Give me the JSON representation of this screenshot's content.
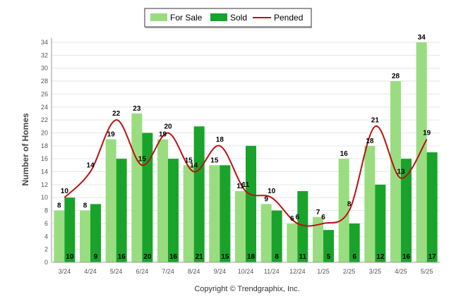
{
  "chart_data": {
    "type": "bar",
    "categories": [
      "3/24",
      "4/24",
      "5/24",
      "6/24",
      "7/24",
      "8/24",
      "9/24",
      "10/24",
      "11/24",
      "12/24",
      "1/25",
      "2/25",
      "3/25",
      "4/25",
      "5/25"
    ],
    "series": [
      {
        "name": "For Sale",
        "type": "bar",
        "color": "#99dd80",
        "values": [
          8,
          8,
          19,
          23,
          19,
          15,
          15,
          11,
          9,
          6,
          7,
          16,
          18,
          28,
          34
        ]
      },
      {
        "name": "Sold",
        "type": "bar",
        "color": "#1aa32a",
        "values": [
          10,
          9,
          16,
          20,
          16,
          21,
          15,
          18,
          8,
          11,
          5,
          6,
          12,
          16,
          17
        ]
      },
      {
        "name": "Pended",
        "type": "line",
        "color": "#bb1111",
        "values": [
          10,
          14,
          22,
          15,
          20,
          14,
          18,
          11,
          10,
          6,
          6,
          8,
          21,
          13,
          19
        ]
      }
    ],
    "ylabel": "Number of Homes",
    "xlabel": "",
    "ylim": [
      0,
      34
    ],
    "yticks": [
      0,
      2,
      4,
      6,
      8,
      10,
      12,
      14,
      16,
      18,
      20,
      22,
      24,
      26,
      28,
      30,
      32,
      34
    ],
    "grid": true,
    "legend": "top-center"
  },
  "footer": {
    "copyright": "Copyright © Trendgraphix, Inc."
  }
}
